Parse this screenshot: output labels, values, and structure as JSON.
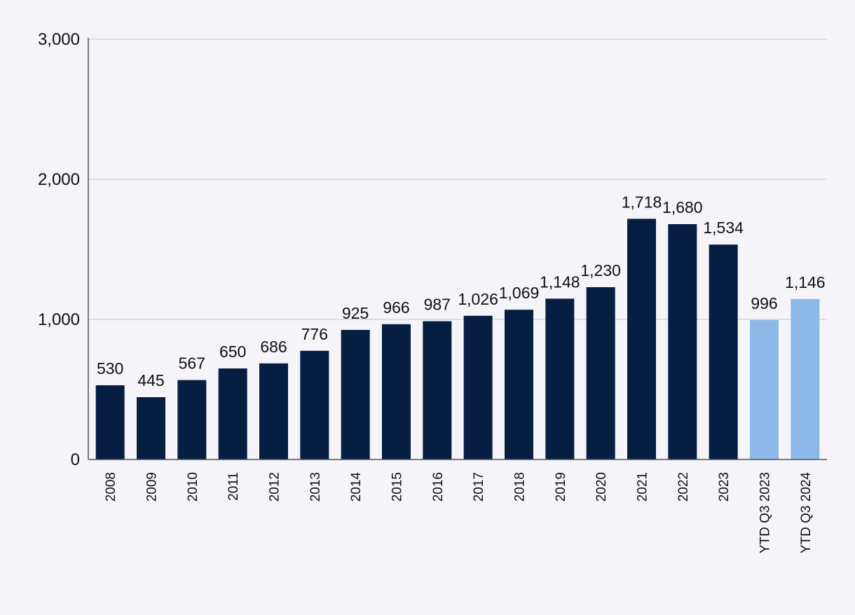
{
  "chart_data": {
    "type": "bar",
    "title": "",
    "xlabel": "",
    "ylabel": "",
    "ylim": [
      0,
      3000
    ],
    "yticks": [
      0,
      1000,
      2000,
      3000
    ],
    "ytick_labels": [
      "0",
      "1,000",
      "2,000",
      "3,000"
    ],
    "grid": true,
    "categories": [
      "2008",
      "2009",
      "2010",
      "2011",
      "2012",
      "2013",
      "2014",
      "2015",
      "2016",
      "2017",
      "2018",
      "2019",
      "2020",
      "2021",
      "2022",
      "2023",
      "YTD Q3 2023",
      "YTD Q3 2024"
    ],
    "values": [
      530,
      445,
      567,
      650,
      686,
      776,
      925,
      966,
      987,
      1026,
      1069,
      1148,
      1230,
      1718,
      1680,
      1534,
      996,
      1146
    ],
    "value_labels": [
      "530",
      "445",
      "567",
      "650",
      "686",
      "776",
      "925",
      "966",
      "987",
      "1,026",
      "1,069",
      "1,148",
      "1,230",
      "1,718",
      "1,680",
      "1,534",
      "996",
      "1,146"
    ],
    "bar_colors": [
      "#051e42",
      "#051e42",
      "#051e42",
      "#051e42",
      "#051e42",
      "#051e42",
      "#051e42",
      "#051e42",
      "#051e42",
      "#051e42",
      "#051e42",
      "#051e42",
      "#051e42",
      "#051e42",
      "#051e42",
      "#051e42",
      "#8db8e8",
      "#8db8e8"
    ],
    "colors": {
      "background": "#f4f4f9",
      "grid": "#d5d5df",
      "axis": "#555555",
      "text": "#111111"
    }
  }
}
